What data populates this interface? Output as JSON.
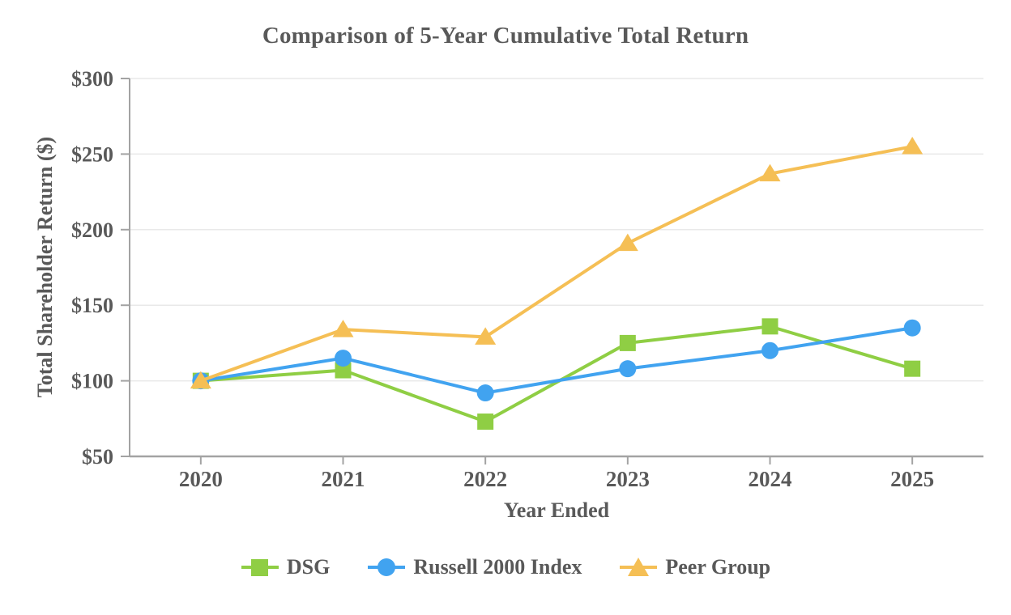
{
  "chart_data": {
    "type": "line",
    "title": "Comparison of 5-Year Cumulative Total Return",
    "xlabel": "Year Ended",
    "ylabel": "Total Shareholder Return ($)",
    "categories": [
      "2020",
      "2021",
      "2022",
      "2023",
      "2024",
      "2025"
    ],
    "ylim": [
      50,
      300
    ],
    "y_tick_step": 50,
    "y_tick_labels": [
      "$50",
      "$100",
      "$150",
      "$200",
      "$250",
      "$300"
    ],
    "y_tick_prefix": "$",
    "grid": true,
    "legend_position": "bottom",
    "series": [
      {
        "name": "DSG",
        "marker": "square",
        "color": "#8FCE44",
        "values": [
          100,
          107,
          73,
          125,
          136,
          108
        ]
      },
      {
        "name": "Russell 2000 Index",
        "marker": "circle",
        "color": "#41A3F0",
        "values": [
          100,
          115,
          92,
          108,
          120,
          135
        ]
      },
      {
        "name": "Peer Group",
        "marker": "triangle",
        "color": "#F5BF55",
        "values": [
          100,
          134,
          129,
          191,
          237,
          255
        ]
      }
    ],
    "colors": {
      "axis": "#A3A3A3",
      "gridline": "#E9E9E9",
      "text": "#595959",
      "background": "#FFFFFF"
    }
  }
}
